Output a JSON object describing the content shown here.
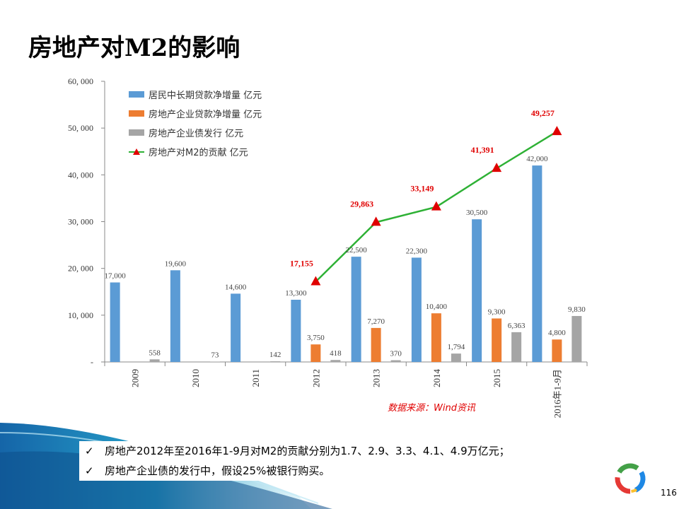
{
  "slide": {
    "title": "房地产对M2的影响",
    "source_note": "数据来源：Wind资讯",
    "bullets": [
      "房地产2012年至2016年1-9月对M2的贡献分别为1.7、2.9、3.3、4.1、4.9万亿元；",
      "房地产企业债的发行中，假设25%被银行购买。"
    ],
    "page_number": "116"
  },
  "chart_data": {
    "type": "bar",
    "categories": [
      "2009",
      "2010",
      "2011",
      "2012",
      "2013",
      "2014",
      "2015",
      "2016年1-9月"
    ],
    "ylim": [
      0,
      60000
    ],
    "yticks": [
      "-",
      "10, 000",
      "20, 000",
      "30, 000",
      "40, 000",
      "50, 000",
      "60, 000"
    ],
    "series": [
      {
        "name": "居民中长期贷款净增量 亿元",
        "type": "bar",
        "color": "#5b9bd5",
        "values": [
          17000,
          19600,
          14600,
          13300,
          22500,
          22300,
          30500,
          42000
        ],
        "labels": [
          "17,000",
          "19,600",
          "14,600",
          "13,300",
          "22,500",
          "22,300",
          "30,500",
          "42,000"
        ]
      },
      {
        "name": "房地产企业贷款净增量 亿元",
        "type": "bar",
        "color": "#ed7d31",
        "values": [
          null,
          null,
          null,
          3750,
          7270,
          10400,
          9300,
          4800
        ],
        "labels": [
          "",
          "",
          "",
          "3,750",
          "7,270",
          "10,400",
          "9,300",
          "4,800"
        ]
      },
      {
        "name": "房地产企业债发行 亿元",
        "type": "bar",
        "color": "#a5a5a5",
        "values": [
          558,
          73,
          142,
          418,
          370,
          1794,
          6363,
          9830
        ],
        "labels": [
          "558",
          "73",
          "142",
          "418",
          "370",
          "1,794",
          "6,363",
          "9,830"
        ]
      },
      {
        "name": "房地产对M2的贡献 亿元",
        "type": "line",
        "color": "#2eb135",
        "marker_color": "#e00000",
        "values": [
          null,
          null,
          null,
          17155,
          29863,
          33149,
          41391,
          49257
        ],
        "labels": [
          "",
          "",
          "",
          "17,155",
          "29,863",
          "33,149",
          "41,391",
          "49,257"
        ]
      }
    ],
    "legend": "top-left"
  }
}
